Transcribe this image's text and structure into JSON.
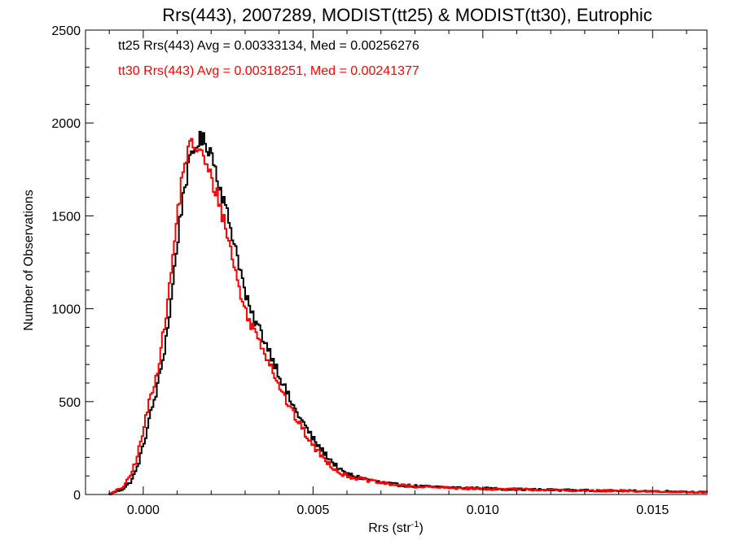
{
  "chart_data": {
    "type": "line",
    "title": "Rrs(443), 2007289, MODIST(tt25) & MODIST(tt30), Eutrophic",
    "xlabel_main": "Rrs (str",
    "xlabel_sup": "-1",
    "xlabel_close": ")",
    "ylabel": "Number of Observations",
    "xlim": [
      -0.0017,
      0.0166
    ],
    "ylim": [
      0,
      2500
    ],
    "xticks": [
      0.0,
      0.005,
      0.01,
      0.015
    ],
    "xtick_labels": [
      "0.000",
      "0.005",
      "0.010",
      "0.015"
    ],
    "yticks": [
      0,
      500,
      1000,
      1500,
      2000,
      2500
    ],
    "ytick_labels": [
      "0",
      "500",
      "1000",
      "1500",
      "2000",
      "2500"
    ],
    "grid": false,
    "annotations": [
      {
        "text": "tt25 Rrs(443) Avg = 0.00333134, Med = 0.00256276",
        "color": "#000000"
      },
      {
        "text": "tt30 Rrs(443) Avg = 0.00318251, Med = 0.00241377",
        "color": "#ff0000"
      }
    ],
    "series": [
      {
        "color": "#000000",
        "x": [
          -0.001,
          -0.0008,
          -0.0006,
          -0.0004,
          -0.0002,
          0.0,
          0.0002,
          0.0004,
          0.0006,
          0.0008,
          0.001,
          0.0012,
          0.0014,
          0.0016,
          0.0018,
          0.002,
          0.0022,
          0.0024,
          0.0026,
          0.0028,
          0.003,
          0.0032,
          0.0034,
          0.0036,
          0.0038,
          0.004,
          0.0042,
          0.0044,
          0.0046,
          0.0048,
          0.005,
          0.0052,
          0.0054,
          0.0056,
          0.0058,
          0.006,
          0.0065,
          0.007,
          0.0075,
          0.008,
          0.009,
          0.01,
          0.011,
          0.012,
          0.013,
          0.014,
          0.015,
          0.016,
          0.0166
        ],
        "y": [
          0,
          15,
          30,
          60,
          130,
          260,
          420,
          560,
          750,
          1000,
          1350,
          1650,
          1800,
          1910,
          1900,
          1850,
          1700,
          1560,
          1420,
          1270,
          1080,
          960,
          900,
          820,
          740,
          650,
          560,
          480,
          420,
          360,
          300,
          250,
          210,
          170,
          130,
          110,
          85,
          65,
          52,
          45,
          38,
          33,
          28,
          25,
          22,
          20,
          18,
          15,
          12
        ]
      },
      {
        "color": "#ff0000",
        "x": [
          -0.001,
          -0.0008,
          -0.0006,
          -0.0004,
          -0.0002,
          0.0,
          0.0002,
          0.0004,
          0.0006,
          0.0008,
          0.001,
          0.0012,
          0.0014,
          0.0016,
          0.0018,
          0.002,
          0.0022,
          0.0024,
          0.0026,
          0.0028,
          0.003,
          0.0032,
          0.0034,
          0.0036,
          0.0038,
          0.004,
          0.0042,
          0.0044,
          0.0046,
          0.0048,
          0.005,
          0.0052,
          0.0054,
          0.0056,
          0.0058,
          0.006,
          0.0065,
          0.007,
          0.0075,
          0.008,
          0.009,
          0.01,
          0.011,
          0.012,
          0.013,
          0.014,
          0.015,
          0.016,
          0.0166
        ],
        "y": [
          0,
          20,
          40,
          90,
          190,
          340,
          520,
          650,
          870,
          1150,
          1500,
          1780,
          1880,
          1870,
          1800,
          1700,
          1600,
          1460,
          1300,
          1130,
          990,
          910,
          840,
          760,
          680,
          590,
          510,
          440,
          380,
          320,
          260,
          220,
          180,
          145,
          115,
          100,
          80,
          62,
          50,
          43,
          36,
          31,
          27,
          24,
          21,
          19,
          17,
          14,
          11
        ]
      }
    ]
  }
}
